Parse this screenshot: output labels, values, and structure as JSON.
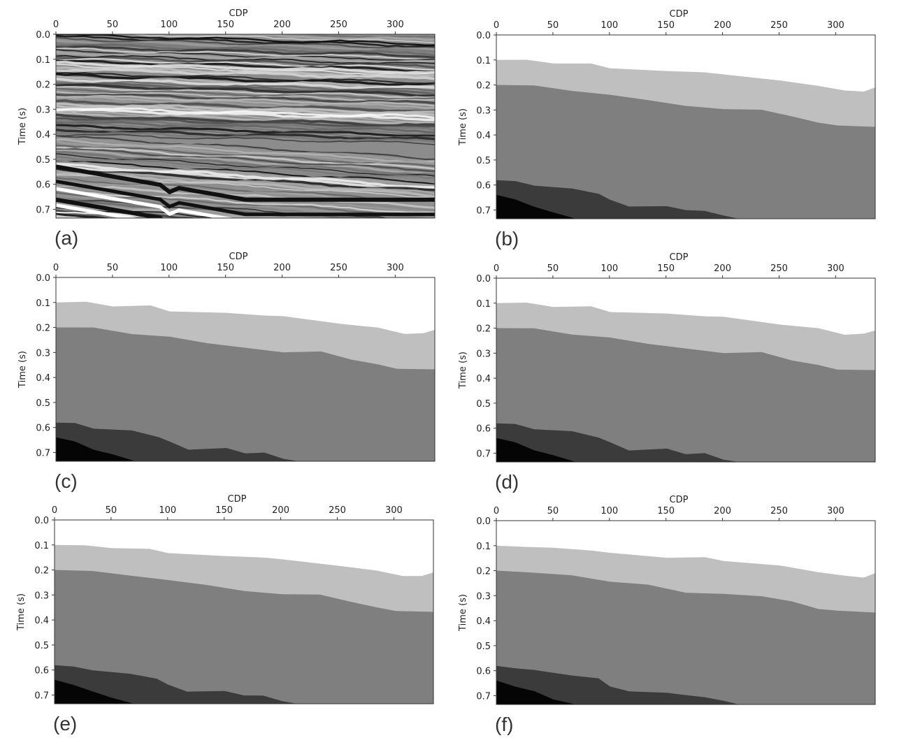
{
  "panels": [
    {
      "label": "(a)",
      "kind": "seismic",
      "x_label": "CDP",
      "y_label": "Time (s)",
      "xlim": [
        0,
        335
      ],
      "ylim": [
        0,
        0.735
      ],
      "xticks": [
        0,
        50,
        100,
        150,
        200,
        250,
        300
      ],
      "yticks": [
        {
          "value": 0,
          "label": "0.0"
        },
        0.1,
        0.2,
        0.3,
        0.4,
        0.5,
        0.6,
        0.7
      ]
    },
    {
      "label": "(b)",
      "kind": "segmentation",
      "x_label": "CDP",
      "y_label": "Time (s)",
      "xlim": [
        0,
        335
      ],
      "ylim": [
        0,
        0.735
      ],
      "xticks": [
        0,
        50,
        100,
        150,
        200,
        250,
        300
      ],
      "yticks": [
        {
          "value": 0,
          "label": "0.0"
        },
        0.1,
        0.2,
        0.3,
        0.4,
        0.5,
        0.6,
        0.7
      ]
    },
    {
      "label": "(c)",
      "kind": "segmentation",
      "x_label": "CDP",
      "y_label": "Time (s)",
      "xlim": [
        0,
        335
      ],
      "ylim": [
        0,
        0.735
      ],
      "xticks": [
        0,
        50,
        100,
        150,
        200,
        250,
        300
      ],
      "yticks": [
        {
          "value": 0,
          "label": "0.0"
        },
        0.1,
        0.2,
        0.3,
        0.4,
        0.5,
        0.6,
        0.7
      ]
    },
    {
      "label": "(d)",
      "kind": "segmentation",
      "x_label": "CDP",
      "y_label": "Time (s)",
      "xlim": [
        0,
        335
      ],
      "ylim": [
        0,
        0.735
      ],
      "xticks": [
        0,
        50,
        100,
        150,
        200,
        250,
        300
      ],
      "yticks": [
        {
          "value": 0,
          "label": "0.0"
        },
        0.1,
        0.2,
        0.3,
        0.4,
        0.5,
        0.6,
        0.7
      ]
    },
    {
      "label": "(e)",
      "kind": "segmentation",
      "x_label": "CDP",
      "y_label": "Time (s)",
      "xlim": [
        0,
        335
      ],
      "ylim": [
        0,
        0.735
      ],
      "xticks": [
        0,
        50,
        100,
        150,
        200,
        250,
        300
      ],
      "yticks": [
        {
          "value": 0,
          "label": "0.0"
        },
        0.1,
        0.2,
        0.3,
        0.4,
        0.5,
        0.6,
        0.7
      ]
    },
    {
      "label": "(f)",
      "kind": "segmentation",
      "x_label": "CDP",
      "y_label": "Time (s)",
      "xlim": [
        0,
        335
      ],
      "ylim": [
        0,
        0.735
      ],
      "xticks": [
        0,
        50,
        100,
        150,
        200,
        250,
        300
      ],
      "yticks": [
        {
          "value": 0,
          "label": "0.0"
        },
        0.1,
        0.2,
        0.3,
        0.4,
        0.5,
        0.6,
        0.7
      ]
    }
  ]
}
